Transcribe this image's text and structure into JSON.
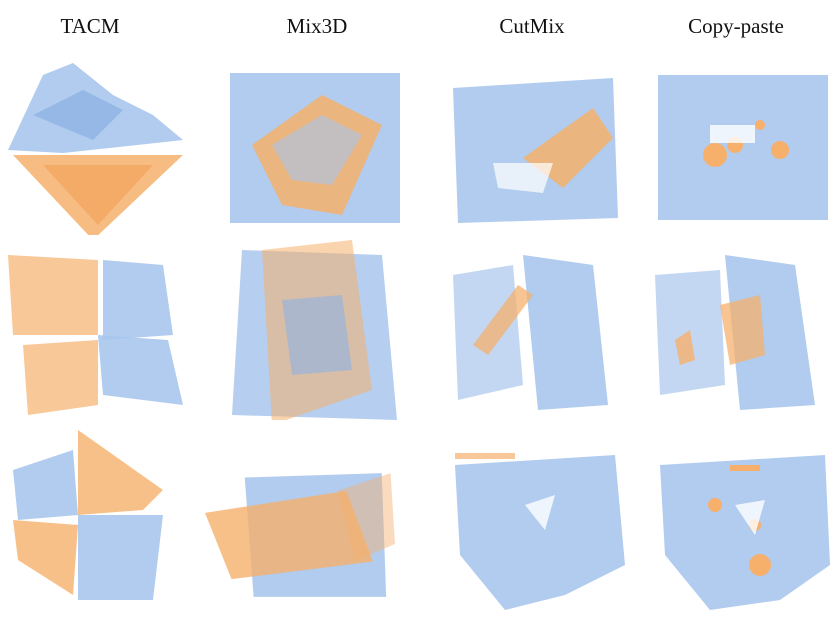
{
  "columns": [
    {
      "label": "TACM"
    },
    {
      "label": "Mix3D"
    },
    {
      "label": "CutMix"
    },
    {
      "label": "Copy-paste"
    }
  ],
  "colors": {
    "scene_a": "#a9c6ec",
    "scene_b": "#f6b06c",
    "background": "#ffffff"
  },
  "rows": 3
}
